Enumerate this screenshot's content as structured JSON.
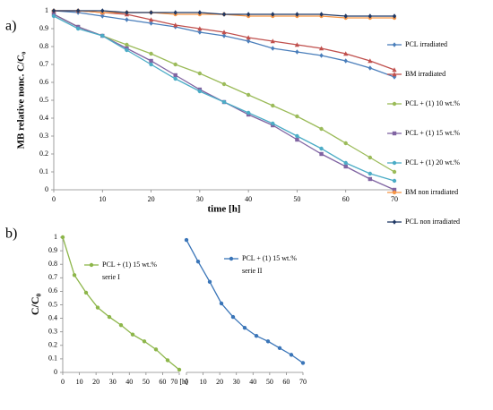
{
  "chart_data": [
    {
      "type": "line",
      "panel_label": "a)",
      "x_label": "time [h]",
      "y_label": "MB relative nonc. C/C₀",
      "xlim": [
        0,
        70
      ],
      "xticks": [
        0,
        10,
        20,
        30,
        40,
        50,
        60,
        70
      ],
      "ylim": [
        0,
        1
      ],
      "yticks": [
        0,
        0.1,
        0.2,
        0.3,
        0.4,
        0.5,
        0.6,
        0.7,
        0.8,
        0.9,
        1
      ],
      "legend": "right",
      "x": [
        0,
        5,
        10,
        15,
        20,
        25,
        30,
        35,
        40,
        45,
        50,
        55,
        60,
        65,
        70
      ],
      "series": [
        {
          "name": "PCL irradiated",
          "color": "#4a7ebb",
          "marker": "diamond",
          "values": [
            1,
            0.99,
            0.97,
            0.95,
            0.93,
            0.91,
            0.88,
            0.86,
            0.83,
            0.79,
            0.77,
            0.75,
            0.72,
            0.68,
            0.63
          ]
        },
        {
          "name": "BM irradiated",
          "color": "#c0504d",
          "marker": "triangle",
          "values": [
            1,
            1,
            0.99,
            0.98,
            0.95,
            0.92,
            0.9,
            0.88,
            0.85,
            0.83,
            0.81,
            0.79,
            0.76,
            0.72,
            0.67
          ]
        },
        {
          "name": "PCL + (1) 10 wt.%",
          "color": "#9bbb59",
          "marker": "circle",
          "values": [
            0.98,
            0.91,
            0.86,
            0.81,
            0.76,
            0.7,
            0.65,
            0.59,
            0.53,
            0.47,
            0.41,
            0.34,
            0.26,
            0.18,
            0.1
          ]
        },
        {
          "name": "PCL + (1) 15 wt.%",
          "color": "#8064a2",
          "marker": "square",
          "values": [
            0.98,
            0.91,
            0.86,
            0.79,
            0.72,
            0.64,
            0.56,
            0.49,
            0.42,
            0.36,
            0.28,
            0.2,
            0.13,
            0.06,
            0
          ]
        },
        {
          "name": "PCL + (1) 20 wt.%",
          "color": "#4bacc6",
          "marker": "circle",
          "values": [
            0.97,
            0.9,
            0.86,
            0.78,
            0.7,
            0.62,
            0.55,
            0.49,
            0.43,
            0.37,
            0.3,
            0.23,
            0.15,
            0.09,
            0.05
          ]
        },
        {
          "name": "BM non irradiated",
          "color": "#f79646",
          "marker": "circle",
          "values": [
            1,
            1,
            0.99,
            0.99,
            0.99,
            0.98,
            0.98,
            0.98,
            0.97,
            0.97,
            0.97,
            0.97,
            0.96,
            0.96,
            0.96
          ]
        },
        {
          "name": "PCL non irradiated",
          "color": "#1f3864",
          "marker": "diamond",
          "values": [
            1,
            1,
            1,
            0.99,
            0.99,
            0.99,
            0.99,
            0.98,
            0.98,
            0.98,
            0.98,
            0.98,
            0.97,
            0.97,
            0.97
          ]
        }
      ]
    },
    {
      "type": "line",
      "panel_label": "b)",
      "y_label": "C/C₀",
      "xlim": [
        0,
        70
      ],
      "xticks": [
        0,
        10,
        20,
        30,
        40,
        50,
        60,
        {
          "value": 70,
          "label": "70 [h]"
        }
      ],
      "ylim": [
        0,
        1
      ],
      "yticks": [
        0,
        0.1,
        0.2,
        0.3,
        0.4,
        0.5,
        0.6,
        0.7,
        0.8,
        0.9,
        1
      ],
      "annotation": "serie I",
      "x": [
        0,
        7,
        14,
        21,
        28,
        35,
        42,
        49,
        56,
        63,
        70
      ],
      "series": [
        {
          "name": "PCL + (1) 15 wt.%",
          "color": "#8db64a",
          "marker": "circle",
          "values": [
            1,
            0.72,
            0.59,
            0.48,
            0.41,
            0.35,
            0.28,
            0.23,
            0.17,
            0.09,
            0.02
          ]
        }
      ]
    },
    {
      "type": "line",
      "xlim": [
        0,
        70
      ],
      "xticks": [
        0,
        10,
        20,
        30,
        40,
        50,
        60,
        70
      ],
      "ylim": [
        0,
        1
      ],
      "annotation": "serie II",
      "x": [
        0,
        7,
        14,
        21,
        28,
        35,
        42,
        49,
        56,
        63,
        70
      ],
      "series": [
        {
          "name": "PCL + (1) 15 wt.%",
          "color": "#3a75b8",
          "marker": "circle",
          "values": [
            0.98,
            0.82,
            0.67,
            0.51,
            0.41,
            0.33,
            0.27,
            0.23,
            0.18,
            0.13,
            0.07
          ]
        }
      ]
    }
  ]
}
